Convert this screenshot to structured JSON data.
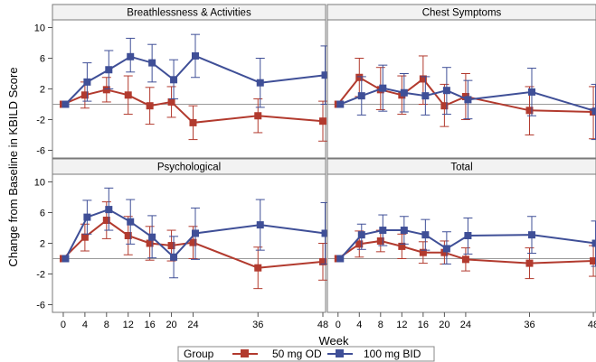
{
  "chart_data": {
    "type": "line",
    "ylabel": "Change from Baseline in KBILD Score",
    "xlabel": "Week",
    "x_ticks": [
      0,
      4,
      8,
      12,
      16,
      20,
      24,
      36,
      48
    ],
    "y_ticks": [
      -6,
      -2,
      2,
      6,
      10
    ],
    "ylim": [
      -7,
      11
    ],
    "xlim": [
      -2,
      48.5
    ],
    "reference_line_y": 0,
    "legend": {
      "title": "Group",
      "position": "bottom",
      "entries": [
        "50 mg OD",
        "100 mg BID"
      ]
    },
    "colors": {
      "50 mg OD": "#b23a2e",
      "100 mg BID": "#3f4f97"
    },
    "panels": [
      {
        "title": "Breathlessness & Activities",
        "series": [
          {
            "name": "50 mg OD",
            "x": [
              0,
              4,
              8,
              12,
              16,
              20,
              24,
              36,
              48
            ],
            "y": [
              0,
              1.2,
              1.9,
              1.2,
              -0.2,
              0.3,
              -2.4,
              -1.5,
              -2.2
            ],
            "lower": [
              0,
              -0.5,
              0.3,
              -1.3,
              -2.6,
              -1.7,
              -4.6,
              -3.7,
              -4.8
            ],
            "upper": [
              0,
              2.9,
              3.5,
              3.7,
              2.2,
              2.3,
              -0.2,
              0.7,
              0.4
            ]
          },
          {
            "name": "100 mg BID",
            "x": [
              0,
              4,
              8,
              12,
              16,
              20,
              24,
              36,
              48
            ],
            "y": [
              0,
              2.9,
              4.5,
              6.2,
              5.4,
              3.2,
              6.3,
              2.8,
              3.8
            ],
            "lower": [
              0,
              0.4,
              2.0,
              4.2,
              2.9,
              0.7,
              3.5,
              -0.4,
              0.0
            ],
            "upper": [
              0,
              5.4,
              7.0,
              8.6,
              7.8,
              5.8,
              9.1,
              6.0,
              7.6
            ]
          }
        ]
      },
      {
        "title": "Chest Symptoms",
        "series": [
          {
            "name": "50 mg OD",
            "x": [
              0,
              4,
              8,
              12,
              16,
              20,
              24,
              36,
              48
            ],
            "y": [
              0,
              3.5,
              1.9,
              1.2,
              3.3,
              -0.2,
              1.0,
              -0.8,
              -1.0
            ],
            "lower": [
              0,
              1.0,
              -0.7,
              -1.3,
              0.0,
              -2.9,
              -2.0,
              -4.0,
              -4.5
            ],
            "upper": [
              0,
              6.0,
              4.8,
              3.7,
              6.3,
              2.6,
              4.0,
              2.3,
              2.3
            ]
          },
          {
            "name": "100 mg BID",
            "x": [
              0,
              4,
              8,
              12,
              16,
              20,
              24,
              36,
              48
            ],
            "y": [
              0,
              1.1,
              2.1,
              1.5,
              1.1,
              1.8,
              0.6,
              1.6,
              -0.9
            ],
            "lower": [
              0,
              -1.4,
              -0.9,
              -1.0,
              -1.4,
              -1.3,
              -1.9,
              -1.5,
              -4.6
            ],
            "upper": [
              0,
              3.6,
              5.1,
              4.0,
              3.6,
              4.8,
              3.1,
              4.7,
              2.6
            ]
          }
        ]
      },
      {
        "title": "Psychological",
        "series": [
          {
            "name": "50 mg OD",
            "x": [
              0,
              4,
              8,
              12,
              16,
              20,
              24,
              36,
              48
            ],
            "y": [
              0,
              2.8,
              5.0,
              3.0,
              2.0,
              1.7,
              2.1,
              -1.2,
              -0.4
            ],
            "lower": [
              0,
              1.0,
              2.6,
              0.5,
              -0.2,
              -0.3,
              0.0,
              -3.9,
              -2.8
            ],
            "upper": [
              0,
              4.5,
              7.4,
              5.5,
              4.2,
              3.7,
              4.2,
              1.5,
              2.0
            ]
          },
          {
            "name": "100 mg BID",
            "x": [
              0,
              4,
              8,
              12,
              16,
              20,
              24,
              36,
              48
            ],
            "y": [
              0,
              5.4,
              6.4,
              4.8,
              2.8,
              0.2,
              3.3,
              4.4,
              3.3
            ],
            "lower": [
              0,
              3.2,
              3.7,
              1.9,
              0.1,
              -2.5,
              -0.1,
              1.1,
              -0.7
            ],
            "upper": [
              0,
              7.6,
              9.2,
              7.7,
              5.6,
              2.9,
              6.6,
              7.7,
              7.3
            ]
          }
        ]
      },
      {
        "title": "Total",
        "series": [
          {
            "name": "50 mg OD",
            "x": [
              0,
              4,
              8,
              12,
              16,
              20,
              24,
              36,
              48
            ],
            "y": [
              0,
              1.9,
              2.3,
              1.6,
              0.8,
              0.8,
              -0.1,
              -0.6,
              -0.3
            ],
            "lower": [
              0,
              0.2,
              0.9,
              0.0,
              -0.6,
              -0.7,
              -1.6,
              -2.6,
              -2.3
            ],
            "upper": [
              0,
              3.6,
              3.7,
              3.2,
              2.2,
              2.3,
              1.4,
              1.4,
              1.7
            ]
          },
          {
            "name": "100 mg BID",
            "x": [
              0,
              4,
              8,
              12,
              16,
              20,
              24,
              36,
              48
            ],
            "y": [
              0,
              3.1,
              3.7,
              3.7,
              3.1,
              1.3,
              3.0,
              3.1,
              2.0
            ],
            "lower": [
              0,
              1.2,
              1.7,
              1.9,
              1.1,
              -0.7,
              0.6,
              0.7,
              -1.0
            ],
            "upper": [
              0,
              4.5,
              5.7,
              5.5,
              5.1,
              3.5,
              5.3,
              5.5,
              4.9
            ]
          }
        ]
      }
    ]
  }
}
